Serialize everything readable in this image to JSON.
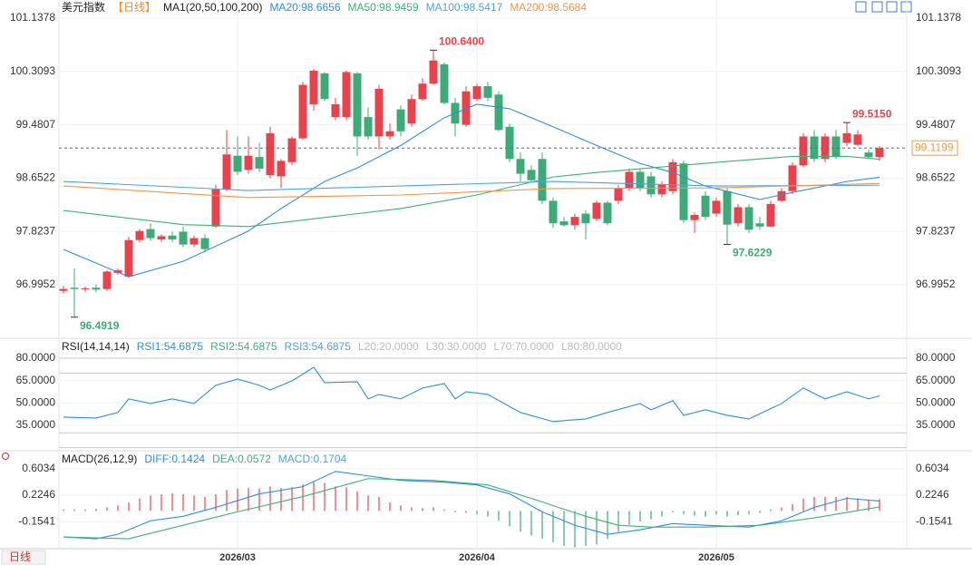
{
  "header": {
    "tab": "日线"
  },
  "chart_data": [
    {
      "type": "candlestick",
      "title": "美元指数",
      "subtitle": "【日线】",
      "indicator": "MA1(20,50,100,200)",
      "categories": [
        null,
        null,
        null,
        null,
        null,
        null,
        null,
        null,
        null,
        null,
        null,
        null,
        null,
        null,
        null,
        null,
        "2026/03",
        null,
        null,
        null,
        null,
        null,
        null,
        null,
        null,
        null,
        null,
        null,
        null,
        null,
        null,
        null,
        null,
        null,
        null,
        null,
        null,
        null,
        "2026/04",
        null,
        null,
        null,
        null,
        null,
        null,
        null,
        null,
        null,
        null,
        null,
        null,
        null,
        null,
        null,
        null,
        null,
        null,
        null,
        null,
        null,
        "2026/05",
        null,
        null,
        null,
        null,
        null,
        null,
        null,
        null,
        null,
        null,
        null,
        null,
        null,
        null,
        null
      ],
      "candles": [
        [
          96.9,
          96.98,
          96.86,
          96.93
        ],
        [
          96.95,
          97.25,
          96.4919,
          96.93
        ],
        [
          96.93,
          96.97,
          96.88,
          96.94
        ],
        [
          96.95,
          97.0,
          96.88,
          96.92
        ],
        [
          96.93,
          97.22,
          96.9,
          97.2
        ],
        [
          97.18,
          97.25,
          97.15,
          97.22
        ],
        [
          97.12,
          97.74,
          97.1,
          97.69
        ],
        [
          97.69,
          97.86,
          97.65,
          97.83
        ],
        [
          97.86,
          97.95,
          97.68,
          97.72
        ],
        [
          97.7,
          97.78,
          97.66,
          97.75
        ],
        [
          97.76,
          97.82,
          97.66,
          97.7
        ],
        [
          97.82,
          97.9,
          97.58,
          97.62
        ],
        [
          97.62,
          97.76,
          97.58,
          97.72
        ],
        [
          97.72,
          97.78,
          97.5,
          97.55
        ],
        [
          97.9,
          98.55,
          97.88,
          98.48
        ],
        [
          98.48,
          99.4,
          98.45,
          99.02
        ],
        [
          99.0,
          99.3,
          98.7,
          98.75
        ],
        [
          98.78,
          99.3,
          98.72,
          99.0
        ],
        [
          98.98,
          99.2,
          98.75,
          98.8
        ],
        [
          98.7,
          99.45,
          98.65,
          99.35
        ],
        [
          98.68,
          98.95,
          98.5,
          98.92
        ],
        [
          98.9,
          99.3,
          98.85,
          99.27
        ],
        [
          99.27,
          100.15,
          99.25,
          100.1
        ],
        [
          99.8,
          100.35,
          99.7,
          100.32
        ],
        [
          100.28,
          100.3,
          99.85,
          99.88
        ],
        [
          99.6,
          99.9,
          99.55,
          99.8
        ],
        [
          99.6,
          100.32,
          99.55,
          100.3
        ],
        [
          100.28,
          100.3,
          99.0,
          99.3
        ],
        [
          99.6,
          99.75,
          99.25,
          99.3
        ],
        [
          99.3,
          100.1,
          99.1,
          100.04
        ],
        [
          99.3,
          99.5,
          99.25,
          99.38
        ],
        [
          99.72,
          99.78,
          99.3,
          99.38
        ],
        [
          99.5,
          99.95,
          99.45,
          99.88
        ],
        [
          99.88,
          100.2,
          99.85,
          100.12
        ],
        [
          100.12,
          100.64,
          100.1,
          100.48
        ],
        [
          100.42,
          100.45,
          99.8,
          99.82
        ],
        [
          99.82,
          99.9,
          99.3,
          99.5
        ],
        [
          99.48,
          100.08,
          99.45,
          100.0
        ],
        [
          99.88,
          100.12,
          99.85,
          100.08
        ],
        [
          100.08,
          100.15,
          99.85,
          99.9
        ],
        [
          99.95,
          100.0,
          99.38,
          99.4
        ],
        [
          99.45,
          99.5,
          98.9,
          98.95
        ],
        [
          98.95,
          99.05,
          98.6,
          98.72
        ],
        [
          98.78,
          98.85,
          98.58,
          98.62
        ],
        [
          98.95,
          99.05,
          98.25,
          98.3
        ],
        [
          98.3,
          98.35,
          97.88,
          97.95
        ],
        [
          97.98,
          98.05,
          97.9,
          97.92
        ],
        [
          97.92,
          98.1,
          97.85,
          98.05
        ],
        [
          98.1,
          98.15,
          97.7,
          97.95
        ],
        [
          98.02,
          98.3,
          97.98,
          98.27
        ],
        [
          98.27,
          98.3,
          97.92,
          97.95
        ],
        [
          98.3,
          98.55,
          98.25,
          98.5
        ],
        [
          98.5,
          98.8,
          98.45,
          98.75
        ],
        [
          98.75,
          98.8,
          98.45,
          98.5
        ],
        [
          98.68,
          98.75,
          98.35,
          98.4
        ],
        [
          98.4,
          98.6,
          98.35,
          98.55
        ],
        [
          98.45,
          98.95,
          98.4,
          98.9
        ],
        [
          98.88,
          98.92,
          97.95,
          98.0
        ],
        [
          98.0,
          98.12,
          97.8,
          98.08
        ],
        [
          98.38,
          98.45,
          98.0,
          98.05
        ],
        [
          98.1,
          98.35,
          98.05,
          98.3
        ],
        [
          98.45,
          98.5,
          97.6229,
          97.93
        ],
        [
          97.95,
          98.25,
          97.9,
          98.2
        ],
        [
          98.2,
          98.25,
          97.8,
          97.85
        ],
        [
          97.95,
          98.05,
          97.85,
          97.9
        ],
        [
          97.9,
          98.3,
          97.88,
          98.25
        ],
        [
          98.3,
          98.5,
          98.28,
          98.45
        ],
        [
          98.45,
          98.9,
          98.4,
          98.85
        ],
        [
          98.85,
          99.35,
          98.82,
          99.3
        ],
        [
          99.3,
          99.4,
          98.9,
          98.95
        ],
        [
          98.95,
          99.35,
          98.9,
          99.3
        ],
        [
          99.3,
          99.4,
          98.95,
          98.98
        ],
        [
          99.2,
          99.515,
          99.15,
          99.35
        ],
        [
          99.17,
          99.4,
          99.15,
          99.33
        ],
        [
          99.05,
          99.1,
          98.95,
          98.98
        ],
        [
          98.98,
          99.15,
          98.92,
          99.1199
        ]
      ],
      "up_color": "#e8434c",
      "down_color": "#3dab78",
      "series": [
        {
          "name": "MA20:98.6656",
          "color": "#2c8ee0",
          "x": [
            0,
            5,
            6,
            11,
            17,
            20,
            24,
            27,
            31,
            35,
            38,
            41,
            45,
            49,
            53,
            56,
            59,
            64,
            67,
            72,
            75
          ],
          "values": [
            97.545,
            97.19,
            97.12,
            97.36,
            97.83,
            98.18,
            98.6,
            98.81,
            99.16,
            99.59,
            99.8,
            99.73,
            99.45,
            99.16,
            98.88,
            98.74,
            98.53,
            98.32,
            98.43,
            98.6,
            98.6656
          ]
        },
        {
          "name": "MA50:98.9459",
          "color": "#3db07a",
          "x": [
            0,
            11,
            17,
            24,
            31,
            38,
            45,
            49,
            56,
            61,
            67,
            72,
            75
          ],
          "values": [
            98.15,
            97.93,
            97.9,
            98.04,
            98.18,
            98.39,
            98.67,
            98.74,
            98.84,
            98.91,
            98.99,
            98.99,
            98.9459
          ]
        },
        {
          "name": "MA100:98.5417",
          "color": "#4ca3e0",
          "x": [
            0,
            17,
            31,
            45,
            60,
            75
          ],
          "values": [
            98.6,
            98.46,
            98.53,
            98.6,
            98.53,
            98.5417
          ]
        },
        {
          "name": "MA200:98.5684",
          "color": "#f0964a",
          "x": [
            0,
            17,
            31,
            45,
            60,
            75
          ],
          "values": [
            98.53,
            98.35,
            98.39,
            98.49,
            98.5,
            98.5684
          ]
        }
      ],
      "ylim": [
        96.2061,
        101.3069
      ],
      "yticks": [
        96.9952,
        97.8237,
        98.6522,
        99.4807,
        100.3093,
        101.1378
      ],
      "last_price": 99.1199,
      "last_price_color": "#f39a3c",
      "annotations": [
        {
          "value": 100.64,
          "label": "100.6400"
        },
        {
          "value": 96.4919,
          "label": "96.4919"
        },
        {
          "value": 97.6229,
          "label": "97.6229"
        },
        {
          "value": 99.515,
          "label": "99.5150"
        }
      ]
    },
    {
      "type": "line",
      "title": "RSI(14,14,14)",
      "series": [
        {
          "name": "RSI1:54.6875",
          "color": "#2c8ee0",
          "x": [
            0,
            3,
            5,
            6,
            8,
            10,
            12,
            14,
            16,
            18,
            19,
            21,
            23,
            24,
            27,
            28,
            29,
            31,
            33,
            35,
            36,
            37,
            39,
            42,
            45,
            48,
            50,
            53,
            54,
            56,
            57,
            59,
            61,
            63,
            66,
            68,
            70,
            72,
            74,
            75
          ],
          "values": [
            40.5,
            39.9,
            43.6,
            52.7,
            49.6,
            52.7,
            49.6,
            61.8,
            66.0,
            61.8,
            58.7,
            64.8,
            73.9,
            63.6,
            64.2,
            52.7,
            55.7,
            52.7,
            60.0,
            63,
            52.7,
            57.5,
            55.7,
            43.6,
            37.5,
            39.3,
            43.6,
            49.6,
            45.4,
            51.5,
            41.7,
            45.4,
            41.7,
            39.3,
            49.6,
            60.0,
            52.7,
            57.5,
            52.7,
            54.6875
          ]
        }
      ],
      "extra_legend": [
        {
          "name": "RSI2:54.6875",
          "color": "#3db07a"
        },
        {
          "name": "RSI3:54.6875",
          "color": "#4ca3e0"
        }
      ],
      "levels": [
        {
          "name": "L20:20.0000",
          "value": 20
        },
        {
          "name": "L30:30.0000",
          "value": 30
        },
        {
          "name": "L70:70.0000",
          "value": 70
        },
        {
          "name": "L80:80.0000",
          "value": 80
        }
      ],
      "ylim": [
        21,
        90.3
      ],
      "yticks": [
        {
          "value": 35,
          "label": "35.0000"
        },
        {
          "value": 50,
          "label": "50.0000"
        },
        {
          "value": 65,
          "label": "65.0000"
        },
        {
          "value": 80,
          "label": "80.0000"
        }
      ]
    },
    {
      "type": "macd",
      "title": "MACD(26,12,9)",
      "series": [
        {
          "name": "DIFF:0.1424",
          "color": "#2c8ee0",
          "x": [
            0,
            3,
            5,
            8,
            11,
            14,
            18,
            22,
            25,
            28,
            31,
            35,
            38,
            41,
            44,
            47,
            50,
            53,
            56,
            59,
            63,
            66,
            69,
            72,
            75
          ],
          "values": [
            -0.372,
            -0.398,
            -0.334,
            -0.141,
            -0.077,
            0.051,
            0.244,
            0.347,
            0.565,
            0.501,
            0.437,
            0.411,
            0.372,
            0.244,
            -0.013,
            -0.205,
            -0.334,
            -0.27,
            -0.18,
            -0.205,
            -0.231,
            -0.141,
            0.051,
            0.18,
            0.1424
          ]
        },
        {
          "name": "DEA:0.0572",
          "color": "#3db07a",
          "x": [
            0,
            6,
            11,
            16,
            22,
            28,
            34,
            39,
            43,
            48,
            51,
            54,
            59,
            64,
            69,
            75
          ],
          "values": [
            -0.372,
            -0.398,
            -0.205,
            -0.013,
            0.205,
            0.462,
            0.437,
            0.372,
            0.18,
            -0.077,
            -0.205,
            -0.231,
            -0.231,
            -0.205,
            -0.1,
            0.0572
          ]
        }
      ],
      "bars": {
        "name": "MACD:0.1704",
        "color": "#4ca3e0",
        "up_color": "#e8434c",
        "down_color": "#3dab78",
        "values": [
          0.02,
          0.02,
          0.02,
          0.03,
          0.05,
          0.08,
          0.12,
          0.18,
          0.22,
          0.24,
          0.25,
          0.24,
          0.22,
          0.2,
          0.24,
          0.3,
          0.32,
          0.33,
          0.32,
          0.35,
          0.33,
          0.34,
          0.38,
          0.42,
          0.4,
          0.35,
          0.34,
          0.28,
          0.22,
          0.2,
          0.12,
          0.08,
          0.05,
          0.04,
          0.05,
          0.02,
          -0.02,
          -0.03,
          -0.05,
          -0.08,
          -0.14,
          -0.22,
          -0.3,
          -0.35,
          -0.4,
          -0.45,
          -0.5,
          -0.52,
          -0.5,
          -0.48,
          -0.4,
          -0.3,
          -0.2,
          -0.15,
          -0.12,
          -0.08,
          -0.02,
          -0.05,
          -0.07,
          -0.08,
          -0.05,
          -0.08,
          -0.06,
          -0.05,
          -0.03,
          0.02,
          0.05,
          0.1,
          0.18,
          0.2,
          0.2,
          0.2,
          0.2,
          0.18,
          0.16,
          0.1704
        ]
      },
      "ylim": [
        -0.5264,
        0.8216
      ],
      "yticks": [
        -0.1541,
        0.2246,
        0.6034
      ]
    }
  ]
}
